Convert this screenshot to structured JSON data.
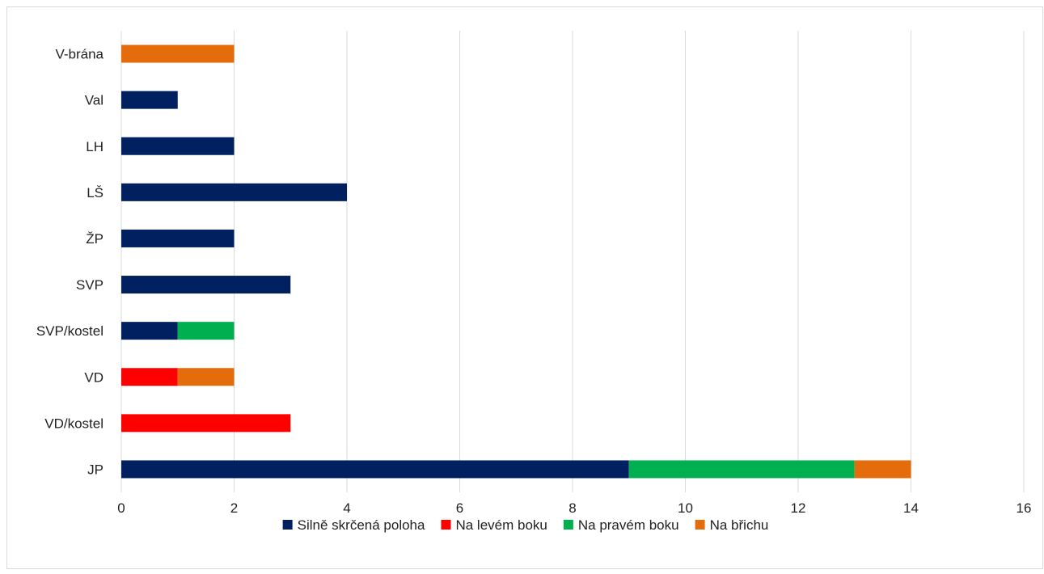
{
  "chart_data": {
    "type": "bar",
    "orientation": "horizontal",
    "stacked": true,
    "title": "",
    "xlabel": "",
    "ylabel": "",
    "categories": [
      "V-brána",
      "Val",
      "LH",
      "LŠ",
      "ŽP",
      "SVP",
      "SVP/kostel",
      "VD",
      "VD/kostel",
      "JP"
    ],
    "series": [
      {
        "name": "Silně skrčená poloha",
        "color": "#002060",
        "values": [
          0,
          1,
          2,
          4,
          2,
          3,
          1,
          0,
          0,
          9
        ]
      },
      {
        "name": "Na levém boku",
        "color": "#ff0000",
        "values": [
          0,
          0,
          0,
          0,
          0,
          0,
          0,
          1,
          3,
          0
        ]
      },
      {
        "name": "Na pravém boku",
        "color": "#00b050",
        "values": [
          0,
          0,
          0,
          0,
          0,
          0,
          1,
          0,
          0,
          4
        ]
      },
      {
        "name": "Na břichu",
        "color": "#e46c0a",
        "values": [
          2,
          0,
          0,
          0,
          0,
          0,
          0,
          1,
          0,
          1
        ]
      }
    ],
    "xlim": [
      0,
      16
    ],
    "xticks": [
      "0",
      "2",
      "4",
      "6",
      "8",
      "10",
      "12",
      "14",
      "16"
    ],
    "grid": true,
    "legend_position": "bottom"
  }
}
